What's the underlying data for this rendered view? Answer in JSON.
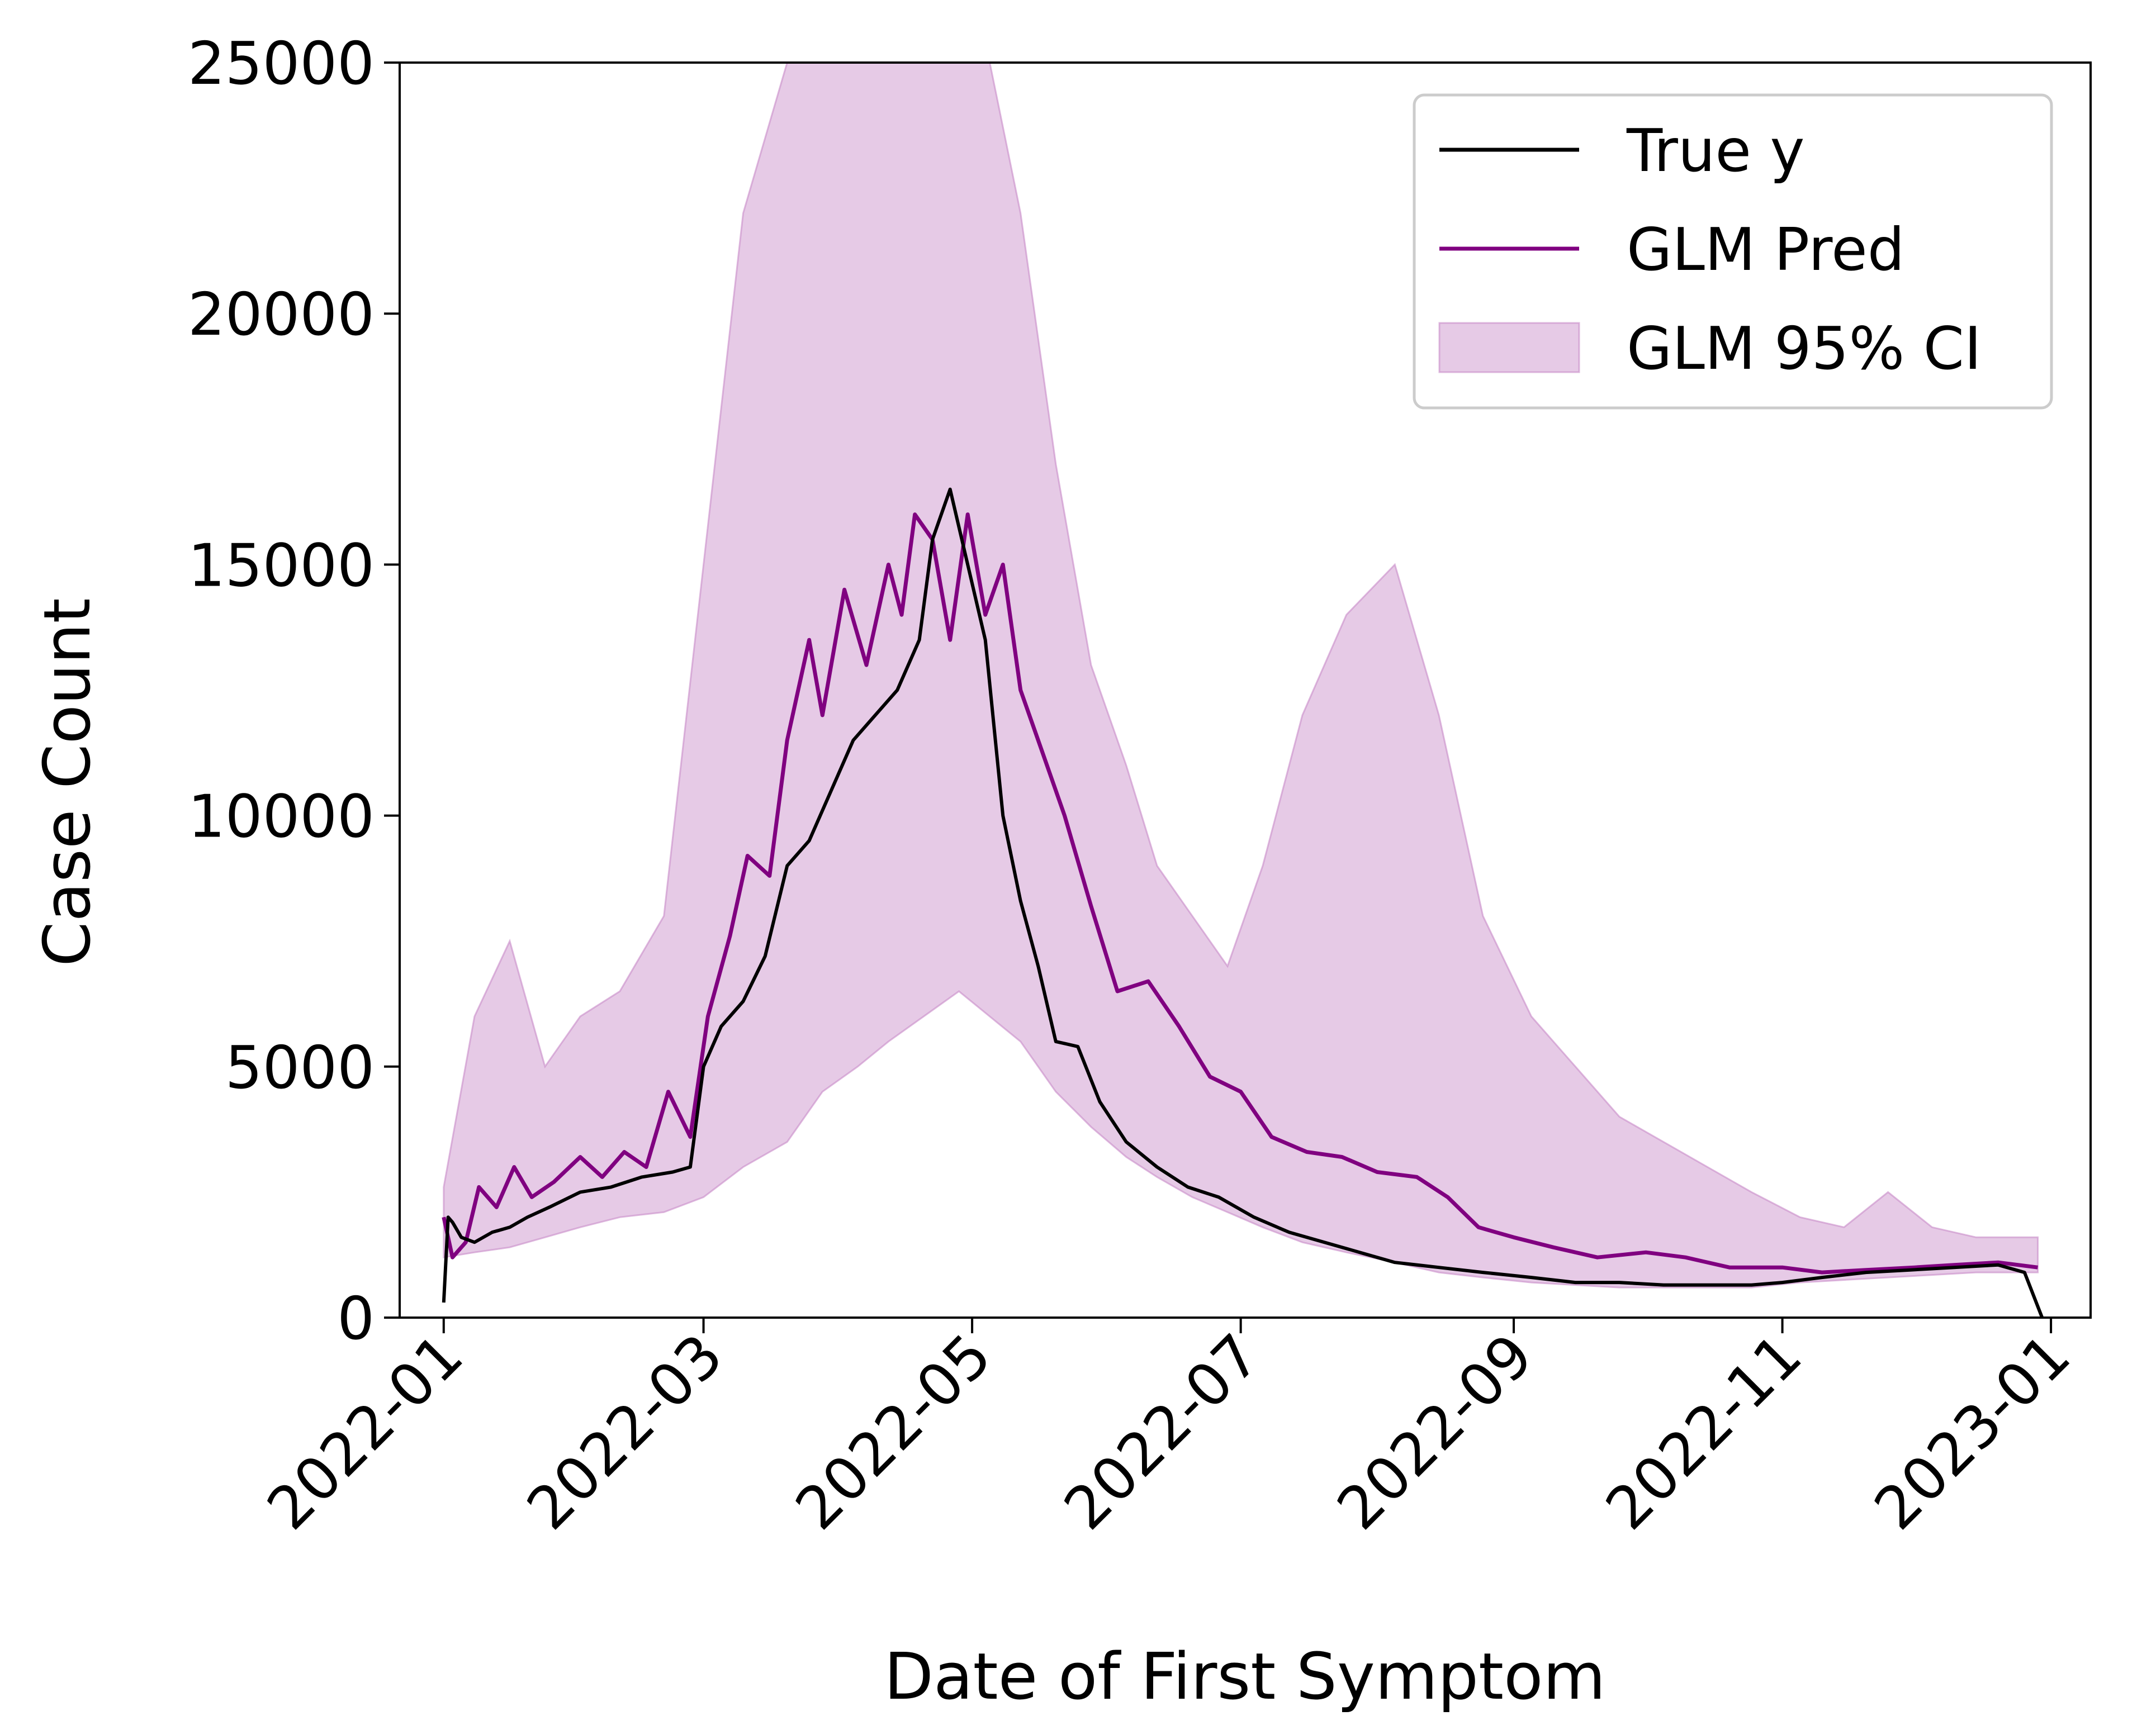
{
  "chart_data": {
    "type": "line",
    "xlabel": "Date of First Symptom",
    "ylabel": "Case Count",
    "xlim": [
      "2021-12-22",
      "2023-01-10"
    ],
    "ylim": [
      0,
      25000
    ],
    "grid": false,
    "legend_position": "top-right",
    "x_ticks": [
      "2022-01",
      "2022-03",
      "2022-05",
      "2022-07",
      "2022-09",
      "2022-11",
      "2023-01"
    ],
    "y_ticks": [
      "0",
      "5000",
      "10000",
      "15000",
      "20000",
      "25000"
    ],
    "legend": [
      "True y",
      "GLM Pred",
      "GLM 95% CI"
    ],
    "colors": {
      "true": "#000000",
      "pred": "#800080",
      "ci": "#c88ac8"
    },
    "series": [
      {
        "name": "True y",
        "x": [
          "2022-01-01",
          "2022-01-02",
          "2022-01-03",
          "2022-01-05",
          "2022-01-08",
          "2022-01-12",
          "2022-01-16",
          "2022-01-20",
          "2022-01-25",
          "2022-02-01",
          "2022-02-08",
          "2022-02-15",
          "2022-02-22",
          "2022-02-26",
          "2022-03-01",
          "2022-03-05",
          "2022-03-10",
          "2022-03-15",
          "2022-03-20",
          "2022-03-25",
          "2022-03-30",
          "2022-04-04",
          "2022-04-09",
          "2022-04-14",
          "2022-04-19",
          "2022-04-22",
          "2022-04-26",
          "2022-04-30",
          "2022-05-04",
          "2022-05-08",
          "2022-05-12",
          "2022-05-16",
          "2022-05-20",
          "2022-05-25",
          "2022-05-30",
          "2022-06-05",
          "2022-06-12",
          "2022-06-19",
          "2022-06-26",
          "2022-07-04",
          "2022-07-12",
          "2022-07-20",
          "2022-07-28",
          "2022-08-05",
          "2022-08-15",
          "2022-08-25",
          "2022-09-05",
          "2022-09-15",
          "2022-09-25",
          "2022-10-05",
          "2022-10-15",
          "2022-10-25",
          "2022-11-01",
          "2022-11-10",
          "2022-11-20",
          "2022-11-30",
          "2022-12-10",
          "2022-12-20",
          "2022-12-26",
          "2022-12-30"
        ],
        "values": [
          300,
          2000,
          1900,
          1600,
          1500,
          1700,
          1800,
          2000,
          2200,
          2500,
          2600,
          2800,
          2900,
          3000,
          5000,
          5800,
          6300,
          7200,
          9000,
          9500,
          10500,
          11500,
          12000,
          12500,
          13500,
          15500,
          16500,
          15000,
          13500,
          10000,
          8300,
          7000,
          5500,
          5400,
          4300,
          3500,
          3000,
          2600,
          2400,
          2000,
          1700,
          1500,
          1300,
          1100,
          1000,
          900,
          800,
          700,
          700,
          650,
          650,
          650,
          700,
          800,
          900,
          950,
          1000,
          1050,
          900,
          0
        ]
      },
      {
        "name": "GLM Pred",
        "x": [
          "2022-01-01",
          "2022-01-03",
          "2022-01-06",
          "2022-01-09",
          "2022-01-13",
          "2022-01-17",
          "2022-01-21",
          "2022-01-26",
          "2022-02-01",
          "2022-02-06",
          "2022-02-11",
          "2022-02-16",
          "2022-02-21",
          "2022-02-26",
          "2022-03-02",
          "2022-03-07",
          "2022-03-11",
          "2022-03-16",
          "2022-03-20",
          "2022-03-25",
          "2022-03-28",
          "2022-04-02",
          "2022-04-07",
          "2022-04-12",
          "2022-04-15",
          "2022-04-18",
          "2022-04-22",
          "2022-04-26",
          "2022-04-30",
          "2022-05-04",
          "2022-05-08",
          "2022-05-12",
          "2022-05-16",
          "2022-05-22",
          "2022-05-28",
          "2022-06-03",
          "2022-06-10",
          "2022-06-17",
          "2022-06-24",
          "2022-07-01",
          "2022-07-08",
          "2022-07-16",
          "2022-07-24",
          "2022-08-01",
          "2022-08-10",
          "2022-08-17",
          "2022-08-24",
          "2022-09-01",
          "2022-09-10",
          "2022-09-20",
          "2022-10-01",
          "2022-10-10",
          "2022-10-20",
          "2022-11-01",
          "2022-11-10",
          "2022-11-20",
          "2022-12-01",
          "2022-12-10",
          "2022-12-20",
          "2022-12-29"
        ],
        "values": [
          2000,
          1200,
          1500,
          2600,
          2200,
          3000,
          2400,
          2700,
          3200,
          2800,
          3300,
          3000,
          4500,
          3600,
          6000,
          7600,
          9200,
          8800,
          11500,
          13500,
          12000,
          14500,
          13000,
          15000,
          14000,
          16000,
          15500,
          13500,
          16000,
          14000,
          15000,
          12500,
          11500,
          10000,
          8200,
          6500,
          6700,
          5800,
          4800,
          4500,
          3600,
          3300,
          3200,
          2900,
          2800,
          2400,
          1800,
          1600,
          1400,
          1200,
          1300,
          1200,
          1000,
          1000,
          900,
          950,
          1000,
          1050,
          1100,
          1000
        ]
      }
    ],
    "ci_band": {
      "name": "GLM 95% CI",
      "x": [
        "2022-01-01",
        "2022-01-08",
        "2022-01-16",
        "2022-01-24",
        "2022-02-01",
        "2022-02-10",
        "2022-02-20",
        "2022-03-01",
        "2022-03-10",
        "2022-03-20",
        "2022-03-28",
        "2022-04-05",
        "2022-04-12",
        "2022-04-20",
        "2022-04-28",
        "2022-05-05",
        "2022-05-12",
        "2022-05-20",
        "2022-05-28",
        "2022-06-05",
        "2022-06-12",
        "2022-06-20",
        "2022-06-28",
        "2022-07-06",
        "2022-07-15",
        "2022-07-25",
        "2022-08-05",
        "2022-08-15",
        "2022-08-25",
        "2022-09-05",
        "2022-09-15",
        "2022-09-25",
        "2022-10-05",
        "2022-10-15",
        "2022-10-25",
        "2022-11-05",
        "2022-11-15",
        "2022-11-25",
        "2022-12-05",
        "2022-12-15",
        "2022-12-29"
      ],
      "lower": [
        1200,
        1300,
        1400,
        1600,
        1800,
        2000,
        2100,
        2400,
        3000,
        3500,
        4500,
        5000,
        5500,
        6000,
        6500,
        6000,
        5500,
        4500,
        3800,
        3200,
        2800,
        2400,
        2100,
        1800,
        1500,
        1300,
        1100,
        900,
        800,
        700,
        650,
        600,
        600,
        600,
        600,
        700,
        750,
        800,
        850,
        900,
        900
      ],
      "upper": [
        2600,
        6000,
        7500,
        5000,
        6000,
        6500,
        8000,
        15000,
        22000,
        25000,
        25000,
        25000,
        25000,
        25000,
        25000,
        25000,
        22000,
        17000,
        13000,
        11000,
        9000,
        8000,
        7000,
        9000,
        12000,
        14000,
        15000,
        12000,
        8000,
        6000,
        5000,
        4000,
        3500,
        3000,
        2500,
        2000,
        1800,
        2500,
        1800,
        1600,
        1600
      ]
    }
  }
}
